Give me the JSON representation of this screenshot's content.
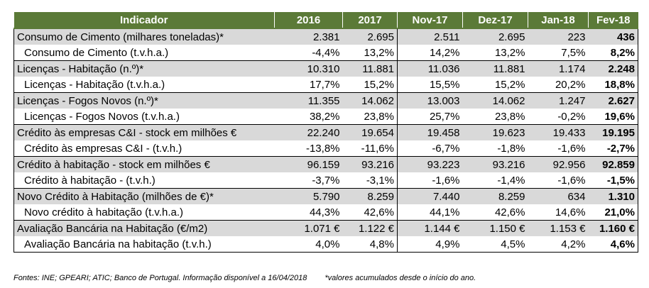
{
  "header": {
    "indicator": "Indicador",
    "cols": [
      "2016",
      "2017",
      "Nov-17",
      "Dez-17",
      "Jan-18",
      "Fev-18"
    ]
  },
  "rows": [
    {
      "label": "Consumo de Cimento (milhares toneladas)*",
      "values": [
        "2.381",
        "2.695",
        "2.511",
        "2.695",
        "223",
        "436"
      ]
    },
    {
      "label": "Consumo de Cimento (t.v.h.a.)",
      "values": [
        "-4,4%",
        "13,2%",
        "14,2%",
        "13,2%",
        "7,5%",
        "8,2%"
      ]
    },
    {
      "label": "Licenças - Habitação (n.º)*",
      "values": [
        "10.310",
        "11.881",
        "11.036",
        "11.881",
        "1.174",
        "2.248"
      ]
    },
    {
      "label": "Licenças - Habitação (t.v.h.a.)",
      "values": [
        "17,7%",
        "15,2%",
        "15,5%",
        "15,2%",
        "20,2%",
        "18,8%"
      ]
    },
    {
      "label": "Licenças - Fogos Novos (n.º)*",
      "values": [
        "11.355",
        "14.062",
        "13.003",
        "14.062",
        "1.247",
        "2.627"
      ]
    },
    {
      "label": "Licenças - Fogos Novos (t.v.h.a.)",
      "values": [
        "38,2%",
        "23,8%",
        "25,7%",
        "23,8%",
        "-0,2%",
        "19,6%"
      ]
    },
    {
      "label": "Crédito às empresas C&I - stock em milhões €",
      "values": [
        "22.240",
        "19.654",
        "19.458",
        "19.623",
        "19.433",
        "19.195"
      ]
    },
    {
      "label": "Crédito às empresas C&I - (t.v.h.)",
      "values": [
        "-13,8%",
        "-11,6%",
        "-6,7%",
        "-1,8%",
        "-1,6%",
        "-2,7%"
      ]
    },
    {
      "label": "Crédito à habitação - stock em milhões €",
      "values": [
        "96.159",
        "93.216",
        "93.223",
        "93.216",
        "92.956",
        "92.859"
      ]
    },
    {
      "label": "Crédito à habitação - (t.v.h.)",
      "values": [
        "-3,7%",
        "-3,1%",
        "-1,6%",
        "-1,4%",
        "-1,6%",
        "-1,5%"
      ]
    },
    {
      "label": "Novo Crédito à Habitação (milhões de €)*",
      "values": [
        "5.790",
        "8.259",
        "7.440",
        "8.259",
        "634",
        "1.310"
      ]
    },
    {
      "label": "Novo crédito à habitação (t.v.h.a.)",
      "values": [
        "44,3%",
        "42,6%",
        "44,1%",
        "42,6%",
        "14,6%",
        "21,0%"
      ]
    },
    {
      "label": "Avaliação Bancária na Habitação (€/m2)",
      "values": [
        "1.071 €",
        "1.122 €",
        "1.144 €",
        "1.150 €",
        "1.153 €",
        "1.160 €"
      ]
    },
    {
      "label": "Avaliação Bancária na habitação (t.v.h.)",
      "values": [
        "4,0%",
        "4,8%",
        "4,9%",
        "4,5%",
        "4,2%",
        "4,6%"
      ]
    }
  ],
  "footer": {
    "sources": "Fontes: INE; GPEARI; ATIC; Banco de Portugal. Informação disponível a 16/04/2018",
    "note": "*valores acumulados desde o início do ano."
  }
}
